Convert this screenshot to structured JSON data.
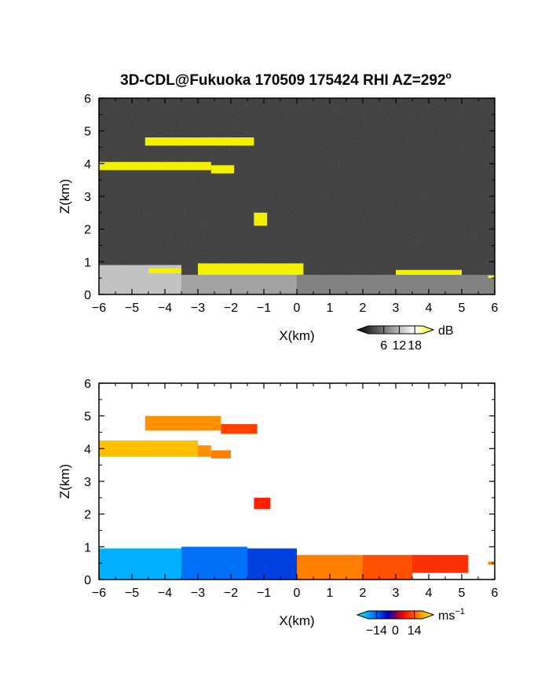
{
  "figure": {
    "title": "3D-CDL@Fukuoka 170509 175424 RHI AZ=292",
    "title_degree": "o"
  },
  "chart_data": [
    {
      "type": "heatmap",
      "panel": "backscatter",
      "xlabel": "X(km)",
      "ylabel": "Z(km)",
      "xlim": [
        -6,
        6
      ],
      "ylim": [
        0,
        6
      ],
      "xticks": [
        -6,
        -5,
        -4,
        -3,
        -2,
        -1,
        0,
        1,
        2,
        3,
        4,
        5,
        6
      ],
      "yticks": [
        0,
        1,
        2,
        3,
        4,
        5,
        6
      ],
      "background_color": "#2e2e2e",
      "highlight_color": "#f5f000",
      "colorbar": {
        "unit": "dB",
        "ticks": [
          6,
          12,
          18
        ],
        "range": [
          0,
          21
        ],
        "colors": [
          "#000000",
          "#555555",
          "#aaaaaa",
          "#ffffff",
          "#ffff00"
        ]
      },
      "regions": [
        {
          "x": [
            -4.6,
            -1.3
          ],
          "z": [
            4.55,
            4.8
          ],
          "value": 20
        },
        {
          "x": [
            -6.0,
            -2.6
          ],
          "z": [
            3.8,
            4.05
          ],
          "value": 20
        },
        {
          "x": [
            -2.6,
            -1.9
          ],
          "z": [
            3.7,
            3.95
          ],
          "value": 20
        },
        {
          "x": [
            -1.3,
            -0.9
          ],
          "z": [
            2.1,
            2.5
          ],
          "value": 20
        },
        {
          "x": [
            -6.0,
            -3.5
          ],
          "z": [
            0.0,
            0.9
          ],
          "value": 12
        },
        {
          "x": [
            -3.5,
            0.0
          ],
          "z": [
            0.0,
            0.6
          ],
          "value": 10
        },
        {
          "x": [
            0.0,
            6.0
          ],
          "z": [
            0.0,
            0.6
          ],
          "value": 8
        },
        {
          "x": [
            -4.5,
            -3.5
          ],
          "z": [
            0.65,
            0.8
          ],
          "value": 20
        },
        {
          "x": [
            -3.0,
            0.2
          ],
          "z": [
            0.6,
            0.95
          ],
          "value": 20
        },
        {
          "x": [
            3.0,
            5.0
          ],
          "z": [
            0.6,
            0.75
          ],
          "value": 20
        },
        {
          "x": [
            5.8,
            6.0
          ],
          "z": [
            0.5,
            0.58
          ],
          "value": 20
        }
      ]
    },
    {
      "type": "heatmap",
      "panel": "doppler_velocity",
      "xlabel": "X(km)",
      "ylabel": "Z(km)",
      "xlim": [
        -6,
        6
      ],
      "ylim": [
        0,
        6
      ],
      "xticks": [
        -6,
        -5,
        -4,
        -3,
        -2,
        -1,
        0,
        1,
        2,
        3,
        4,
        5,
        6
      ],
      "yticks": [
        0,
        1,
        2,
        3,
        4,
        5,
        6
      ],
      "colorbar": {
        "unit": "ms",
        "unit_exponent": "−1",
        "ticks": [
          -14,
          0,
          14
        ],
        "tick_labels": [
          "−14",
          "0",
          "14"
        ],
        "range": [
          -20,
          20
        ],
        "colors": [
          "#00ffff",
          "#0080ff",
          "#0000c0",
          "#ff0000",
          "#ff8000",
          "#ffff00"
        ]
      },
      "regions": [
        {
          "x": [
            -4.6,
            -2.3
          ],
          "z": [
            4.55,
            5.0
          ],
          "value": 13
        },
        {
          "x": [
            -2.3,
            -1.2
          ],
          "z": [
            4.45,
            4.75
          ],
          "value": 8
        },
        {
          "x": [
            -6.0,
            -3.0
          ],
          "z": [
            3.75,
            4.25
          ],
          "value": 16
        },
        {
          "x": [
            -3.0,
            -2.6
          ],
          "z": [
            3.75,
            4.1
          ],
          "value": 13
        },
        {
          "x": [
            -2.6,
            -2.0
          ],
          "z": [
            3.7,
            3.95
          ],
          "value": 12
        },
        {
          "x": [
            -1.3,
            -0.8
          ],
          "z": [
            2.15,
            2.5
          ],
          "value": 6
        },
        {
          "x": [
            -6.0,
            -3.5
          ],
          "z": [
            0.0,
            0.95
          ],
          "value": -15
        },
        {
          "x": [
            -3.5,
            -1.5
          ],
          "z": [
            0.0,
            1.0
          ],
          "value": -11
        },
        {
          "x": [
            -1.5,
            0.0
          ],
          "z": [
            0.0,
            0.95
          ],
          "value": -8
        },
        {
          "x": [
            0.0,
            2.0
          ],
          "z": [
            0.0,
            0.75
          ],
          "value": 12
        },
        {
          "x": [
            2.0,
            3.5
          ],
          "z": [
            0.0,
            0.75
          ],
          "value": 9
        },
        {
          "x": [
            3.5,
            5.2
          ],
          "z": [
            0.2,
            0.75
          ],
          "value": 7
        },
        {
          "x": [
            5.8,
            6.0
          ],
          "z": [
            0.45,
            0.55
          ],
          "value": 13
        }
      ]
    }
  ]
}
